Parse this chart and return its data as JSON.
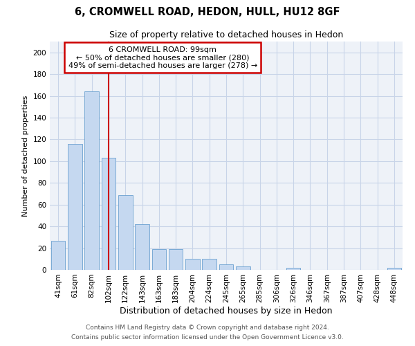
{
  "title": "6, CROMWELL ROAD, HEDON, HULL, HU12 8GF",
  "subtitle": "Size of property relative to detached houses in Hedon",
  "xlabel": "Distribution of detached houses by size in Hedon",
  "ylabel": "Number of detached properties",
  "categories": [
    "41sqm",
    "61sqm",
    "82sqm",
    "102sqm",
    "122sqm",
    "143sqm",
    "163sqm",
    "183sqm",
    "204sqm",
    "224sqm",
    "245sqm",
    "265sqm",
    "285sqm",
    "306sqm",
    "326sqm",
    "346sqm",
    "367sqm",
    "387sqm",
    "407sqm",
    "428sqm",
    "448sqm"
  ],
  "values": [
    27,
    116,
    164,
    103,
    69,
    42,
    19,
    19,
    10,
    10,
    5,
    3,
    0,
    0,
    2,
    0,
    0,
    0,
    0,
    0,
    2
  ],
  "bar_color": "#c5d8f0",
  "bar_edge_color": "#6aa0d0",
  "bar_width": 0.85,
  "red_line_x": 3.0,
  "annotation_line1": "6 CROMWELL ROAD: 99sqm",
  "annotation_line2": "← 50% of detached houses are smaller (280)",
  "annotation_line3": "49% of semi-detached houses are larger (278) →",
  "annotation_box_color": "#ffffff",
  "annotation_box_edge_color": "#cc0000",
  "red_line_color": "#cc0000",
  "grid_color": "#c8d4e8",
  "background_color": "#eef2f8",
  "ylim": [
    0,
    210
  ],
  "yticks": [
    0,
    20,
    40,
    60,
    80,
    100,
    120,
    140,
    160,
    180,
    200
  ],
  "footer_line1": "Contains HM Land Registry data © Crown copyright and database right 2024.",
  "footer_line2": "Contains public sector information licensed under the Open Government Licence v3.0.",
  "title_fontsize": 10.5,
  "subtitle_fontsize": 9,
  "xlabel_fontsize": 9,
  "ylabel_fontsize": 8,
  "tick_fontsize": 7.5,
  "footer_fontsize": 6.5
}
